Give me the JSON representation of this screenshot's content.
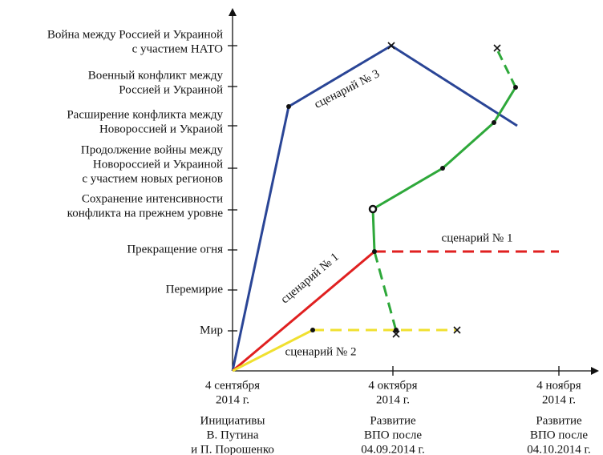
{
  "levels": [
    [
      "Мир"
    ],
    [
      "Перемирие"
    ],
    [
      "Прекращение огня"
    ],
    [
      "Сохранение интенсивности",
      "конфликта на прежнем уровне"
    ],
    [
      "Продолжение войны между",
      "Новороссией и Украиной",
      "с участием новых регионов"
    ],
    [
      "Расширение конфликта между",
      "Новороссией и Украиой"
    ],
    [
      "Военный конфликт между",
      "Россией и Украиной"
    ],
    [
      "Война между Россией и Украиной",
      "с участием НАТО"
    ]
  ],
  "x_ticks": [
    {
      "date": [
        "4 сентября",
        "2014 г."
      ],
      "note": [
        "Инициативы",
        "В. Путина",
        "и П. Порошенко"
      ]
    },
    {
      "date": [
        "4 октября",
        "2014 г."
      ],
      "note": [
        "Развитие",
        "ВПО после",
        "04.09.2014 г."
      ]
    },
    {
      "date": [
        "4 ноября",
        "2014 г."
      ],
      "note": [
        "Развитие",
        "ВПО после",
        "04.10.2014 г."
      ]
    }
  ],
  "scenario_labels": [
    "сценарий № 3",
    "сценарий № 1",
    "сценарий № 1",
    "сценарий № 2"
  ]
}
